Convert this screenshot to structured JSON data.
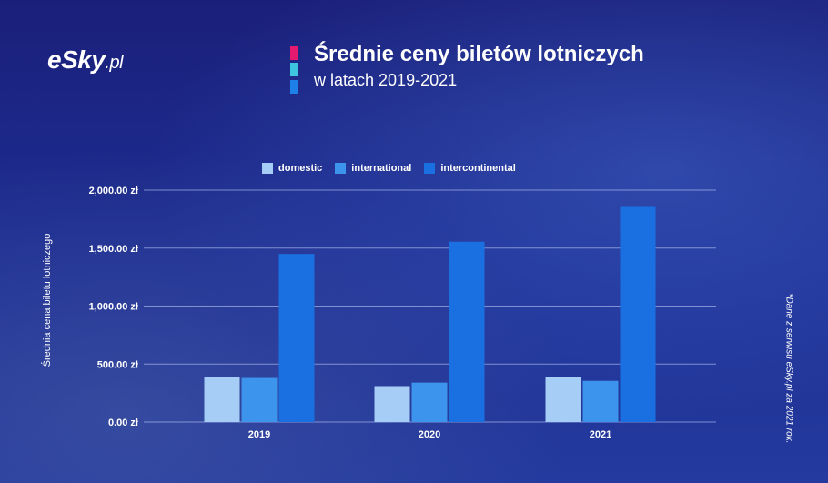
{
  "brand": {
    "logo_text": "eSky",
    "logo_suffix": ".pl"
  },
  "header": {
    "title": "Średnie ceny biletów lotniczych",
    "subtitle": "w latach 2019-2021",
    "accent_colors": [
      "#e5196d",
      "#3ec6e0",
      "#1f7fe8"
    ]
  },
  "footnote": "*Dane z serwisu eSky.pl za 2021 rok.",
  "chart_data": {
    "type": "bar",
    "categories": [
      "2019",
      "2020",
      "2021"
    ],
    "series": [
      {
        "name": "domestic",
        "color": "#a6cdf6",
        "values": [
          385,
          310,
          385
        ]
      },
      {
        "name": "international",
        "color": "#3d94ec",
        "values": [
          380,
          340,
          355
        ]
      },
      {
        "name": "intercontinental",
        "color": "#1a70e0",
        "values": [
          1450,
          1555,
          1855
        ]
      }
    ],
    "ylabel": "Średnia cena biletu lotniczego",
    "xlabel": "",
    "ylim": [
      0,
      2000
    ],
    "yticks": [
      0,
      500,
      1000,
      1500,
      2000
    ],
    "ytick_labels": [
      "0.00 zł",
      "500.00 zł",
      "1,000.00 zł",
      "1,500.00 zł",
      "2,000.00 zł"
    ],
    "grid": true,
    "legend_position": "top"
  }
}
